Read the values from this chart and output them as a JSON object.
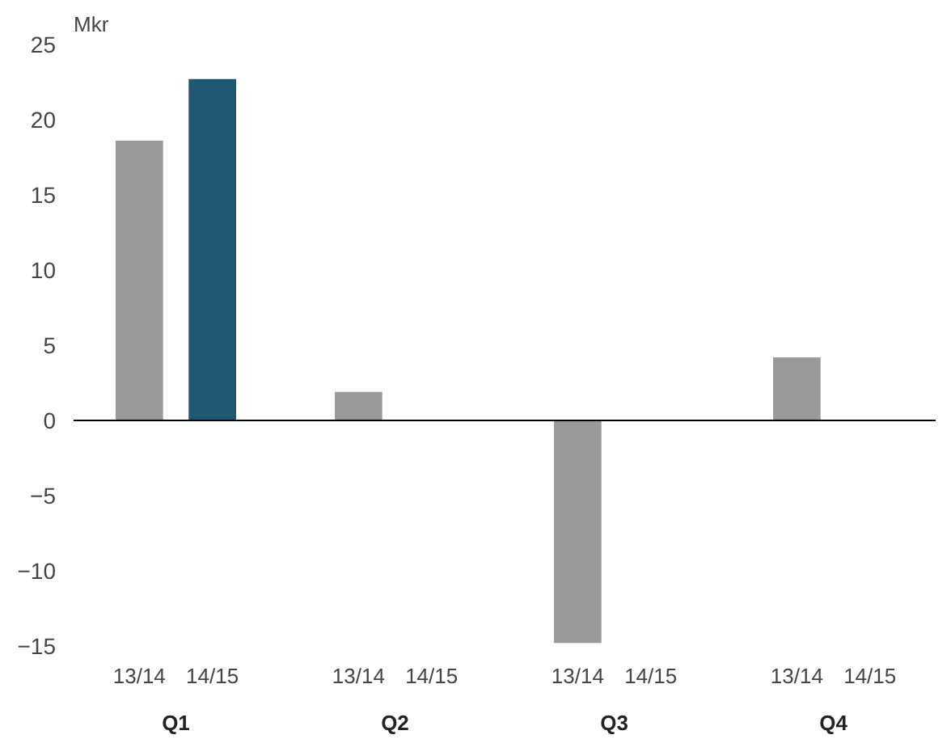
{
  "chart_data": {
    "type": "bar",
    "ylabel": "Mkr",
    "categories": [
      "13/14",
      "14/15",
      "13/14",
      "14/15",
      "13/14",
      "14/15",
      "13/14",
      "14/15"
    ],
    "values": [
      18.6,
      22.7,
      1.9,
      null,
      -14.8,
      null,
      4.2,
      null
    ],
    "colors": [
      "#9a9a9a",
      "#1f5870",
      "#9a9a9a",
      "#1f5870",
      "#9a9a9a",
      "#1f5870",
      "#9a9a9a",
      "#1f5870"
    ],
    "annotations": [
      "Q1",
      "Q2",
      "Q3",
      "Q4"
    ],
    "ylim": [
      -15,
      25
    ],
    "yticks": [
      -15,
      -10,
      -5,
      0,
      5,
      10,
      15,
      20,
      25
    ],
    "ref_lines": [
      {
        "axis": "y",
        "value": 0,
        "color": "#000000"
      }
    ],
    "grid": false
  }
}
